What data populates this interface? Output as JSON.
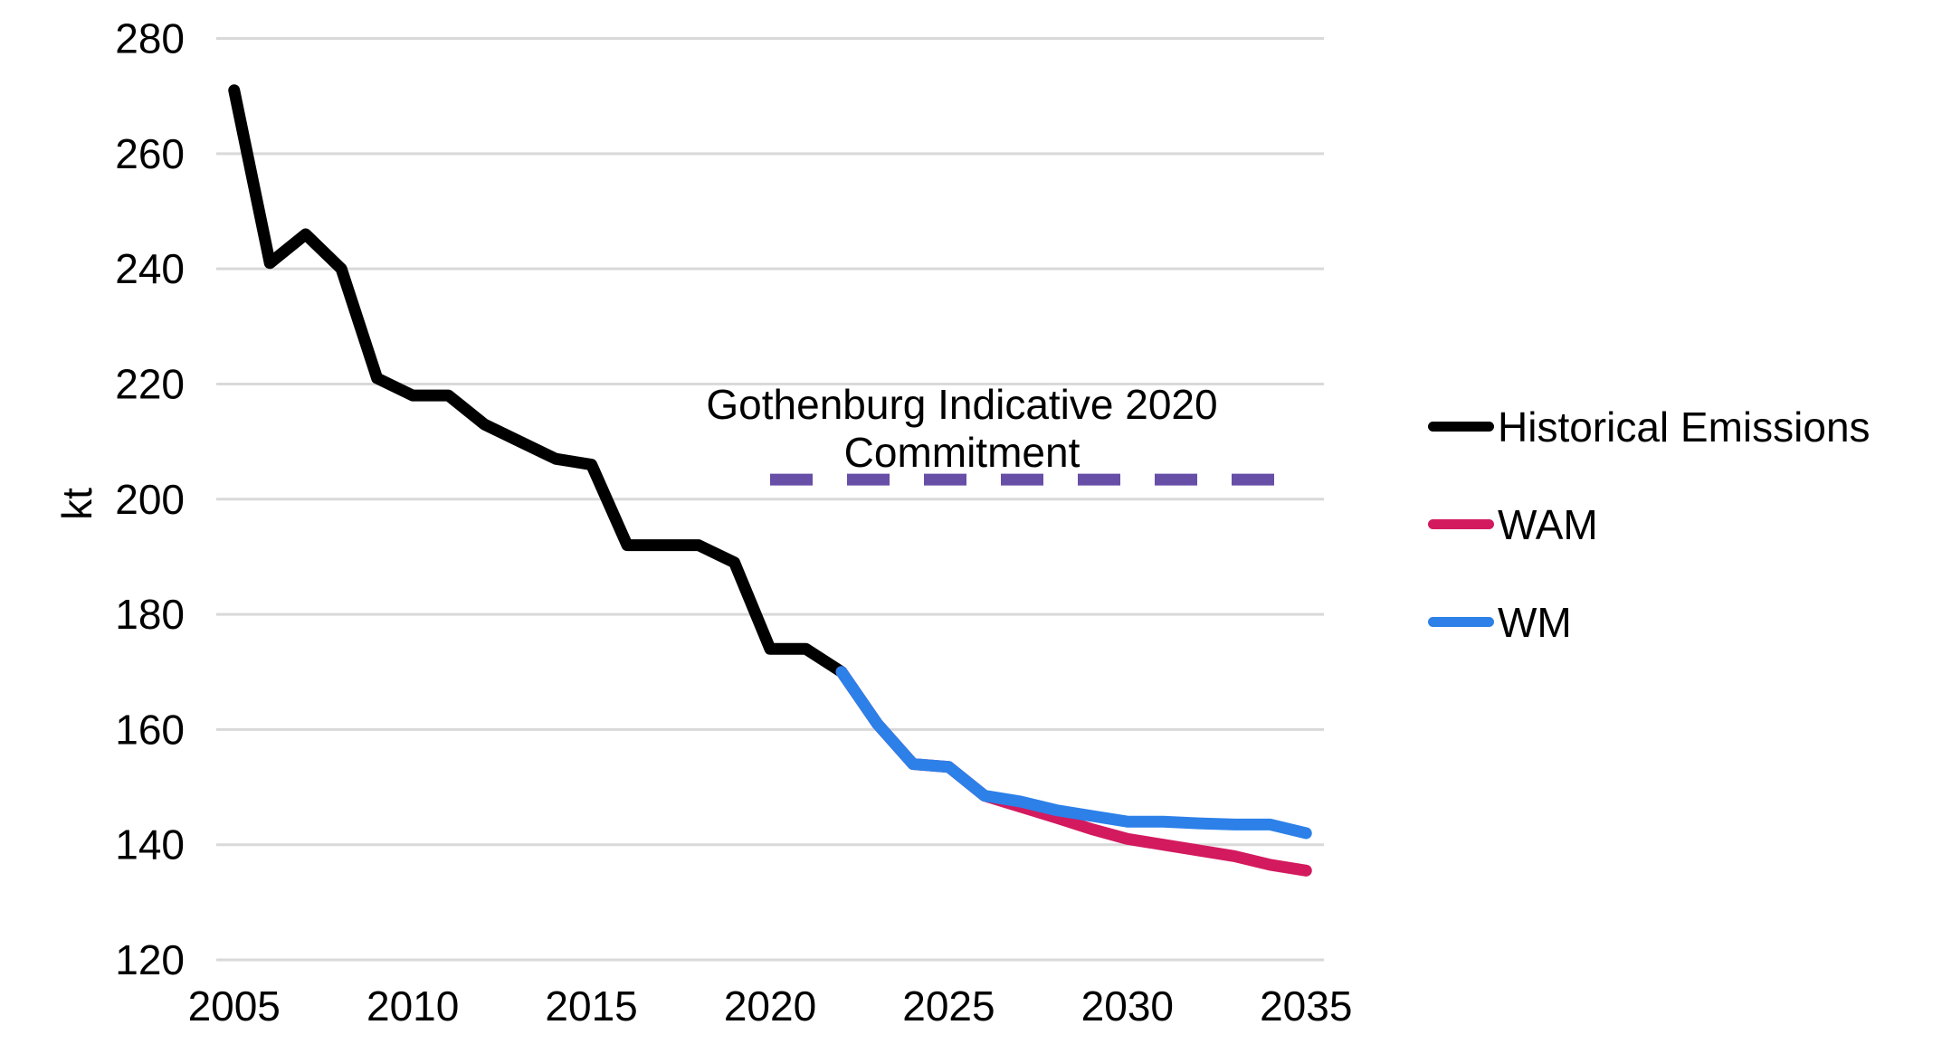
{
  "chart_data": {
    "type": "line",
    "title": "",
    "ylabel": "kt",
    "xlabel": "",
    "y_axis": {
      "min": 120,
      "max": 280,
      "ticks": [
        280,
        260,
        240,
        220,
        200,
        180,
        160,
        140,
        120
      ],
      "grid": true
    },
    "x_axis": {
      "min": 2005,
      "max": 2035,
      "ticks": [
        2005,
        2010,
        2015,
        2020,
        2025,
        2030,
        2035
      ]
    },
    "grid_color": "#D9D9D9",
    "series": [
      {
        "name": "Historical Emissions",
        "color": "#000000",
        "style": "solid",
        "years": [
          2005,
          2006,
          2007,
          2008,
          2009,
          2010,
          2011,
          2012,
          2013,
          2014,
          2015,
          2016,
          2017,
          2018,
          2019,
          2020,
          2021,
          2022
        ],
        "values": [
          271,
          241,
          246,
          240,
          221,
          218,
          218,
          213,
          210,
          207,
          206,
          192,
          192,
          192,
          189,
          174,
          174,
          170
        ]
      },
      {
        "name": "WAM",
        "color": "#D31A5F",
        "style": "solid",
        "years": [
          2022,
          2023,
          2024,
          2025,
          2026,
          2027,
          2028,
          2029,
          2030,
          2031,
          2032,
          2033,
          2034,
          2035
        ],
        "values": [
          170,
          161,
          154,
          153.5,
          148.5,
          146.6,
          144.7,
          142.7,
          141,
          140,
          139,
          138,
          136.5,
          135.5
        ]
      },
      {
        "name": "WM",
        "color": "#2C80E8",
        "style": "solid",
        "years": [
          2022,
          2023,
          2024,
          2025,
          2026,
          2027,
          2028,
          2029,
          2030,
          2031,
          2032,
          2033,
          2034,
          2035
        ],
        "values": [
          170,
          161,
          154,
          153.5,
          148.5,
          147.5,
          146,
          145,
          144,
          144,
          143.7,
          143.5,
          143.5,
          142
        ]
      },
      {
        "name": "Gothenburg Indicative 2020 Commitment",
        "color": "#674EA7",
        "style": "dashed",
        "years": [
          2020,
          2035
        ],
        "values": [
          203.4,
          203.4
        ]
      }
    ],
    "annotation": {
      "line1": "Gothenburg Indicative 2020",
      "line2": "Commitment",
      "value_kt": 203.4
    },
    "legend": [
      {
        "label": "Historical Emissions",
        "color": "#000000"
      },
      {
        "label": "WAM",
        "color": "#D31A5F"
      },
      {
        "label": "WM",
        "color": "#2C80E8"
      }
    ],
    "legend_position": "right"
  }
}
